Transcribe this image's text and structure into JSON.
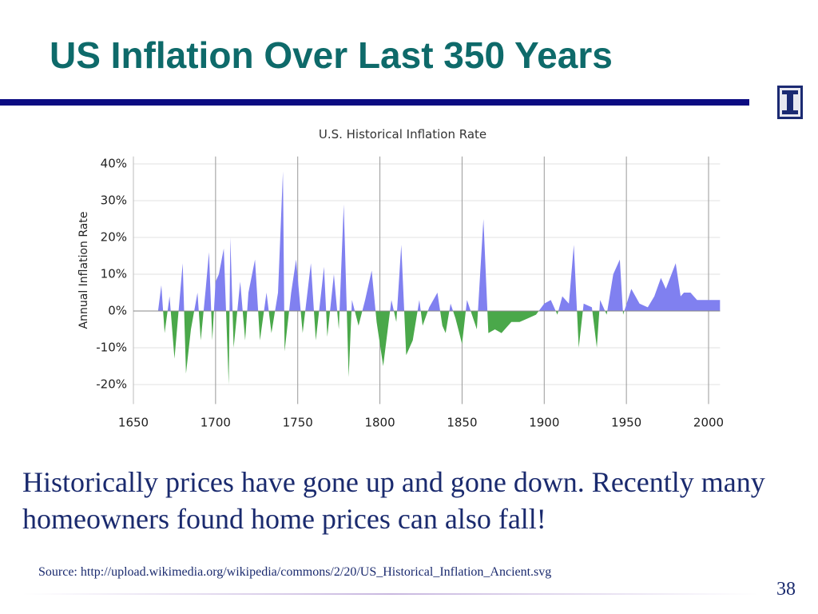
{
  "slide": {
    "title": "US Inflation Over Last 350 Years",
    "body": "Historically prices have gone up and gone down. Recently many homeowners found home prices can also fall!",
    "source": "Source: http://upload.wikimedia.org/wikipedia/commons/2/20/US_Historical_Inflation_Ancient.svg",
    "page_number": "38"
  },
  "chart_data": {
    "type": "area",
    "title": "U.S. Historical Inflation Rate",
    "y_label": "Annual Inflation Rate",
    "x": [
      1665,
      1667,
      1669,
      1672,
      1675,
      1680,
      1682,
      1685,
      1689,
      1691,
      1694,
      1696,
      1698,
      1700,
      1702,
      1705,
      1708,
      1709,
      1711,
      1715,
      1718,
      1720,
      1724,
      1727,
      1731,
      1734,
      1738,
      1741,
      1742,
      1746,
      1749,
      1753,
      1758,
      1761,
      1766,
      1768,
      1772,
      1775,
      1778,
      1781,
      1783,
      1787,
      1791,
      1795,
      1798,
      1802,
      1807,
      1810,
      1813,
      1816,
      1820,
      1824,
      1826,
      1830,
      1835,
      1838,
      1840,
      1843,
      1846,
      1850,
      1853,
      1859,
      1863,
      1866,
      1870,
      1874,
      1880,
      1885,
      1890,
      1895,
      1900,
      1904,
      1908,
      1911,
      1915,
      1918,
      1921,
      1924,
      1929,
      1932,
      1934,
      1938,
      1942,
      1946,
      1948,
      1953,
      1958,
      1963,
      1967,
      1971,
      1974,
      1980,
      1983,
      1985,
      1989,
      1993,
      1997,
      2000,
      2003,
      2007
    ],
    "values": [
      0,
      7,
      -6,
      4,
      -13,
      13,
      -17,
      -5,
      5,
      -8,
      6,
      16,
      -8,
      8,
      10,
      17,
      -20,
      20,
      -10,
      8,
      -8,
      5,
      14,
      -8,
      5,
      -6,
      5,
      38,
      -11,
      5,
      14,
      -6,
      13,
      -8,
      12,
      -7,
      10,
      -5,
      29,
      -18,
      3,
      -4,
      3,
      11,
      -3,
      -15,
      3,
      -3,
      18,
      -12,
      -8,
      3,
      -4,
      1,
      5,
      -4,
      -6,
      2,
      -2,
      -9,
      3,
      -5,
      25,
      -6,
      -5,
      -6,
      -3,
      -3,
      -2,
      -1,
      2,
      3,
      -1,
      4,
      2,
      18,
      -10,
      2,
      1,
      -10,
      3,
      -1,
      10,
      14,
      -1,
      6,
      2,
      1,
      4,
      9,
      6,
      13,
      4,
      5,
      5,
      3,
      3,
      3,
      3,
      3
    ],
    "pos_color": "#8080f0",
    "neg_color": "#4aa84a",
    "xlim": [
      1650,
      2007
    ],
    "xticks": [
      1650,
      1700,
      1750,
      1800,
      1850,
      1900,
      1950,
      2000
    ],
    "ylim": [
      -24,
      42
    ],
    "yticks": [
      {
        "value": -20,
        "label": "-20%"
      },
      {
        "value": -10,
        "label": "-10%"
      },
      {
        "value": 0,
        "label": "0%"
      },
      {
        "value": 10,
        "label": "10%"
      },
      {
        "value": 20,
        "label": "20%"
      },
      {
        "value": 30,
        "label": "30%"
      },
      {
        "value": 40,
        "label": "40%"
      }
    ],
    "grid": true
  }
}
